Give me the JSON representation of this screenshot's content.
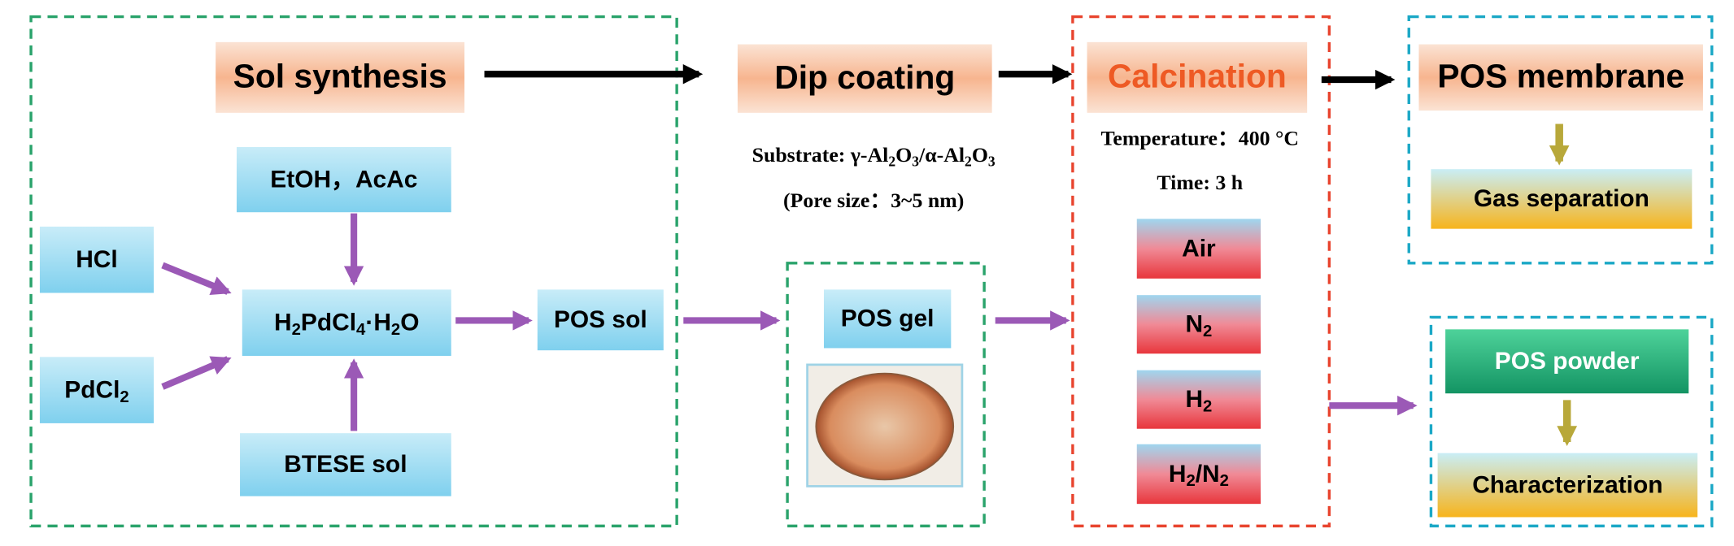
{
  "nodes": [
    {
      "label": "Sol synthesis"
    },
    {
      "label": "Dip coating"
    },
    {
      "label": "Calcination"
    },
    {
      "label": "POS membrane"
    },
    {
      "label": "Gas separation"
    },
    {
      "label": "EtOH，AcAc"
    },
    {
      "label": "HCl"
    },
    {
      "label_parts": [
        "PdCl",
        "2"
      ]
    },
    {
      "label_parts": [
        "H",
        "2",
        "PdCl",
        "4",
        "·H",
        "2",
        "O"
      ]
    },
    {
      "label": "BTESE sol"
    },
    {
      "label": "POS sol"
    },
    {
      "label": "POS gel"
    },
    {
      "label": "Air"
    },
    {
      "label_parts": [
        "N",
        "2"
      ]
    },
    {
      "label_parts": [
        "H",
        "2"
      ]
    },
    {
      "label_parts": [
        "H",
        "2",
        "/N",
        "2"
      ]
    },
    {
      "label": "POS powder"
    },
    {
      "label": "Characterization"
    }
  ],
  "annotations": [
    {
      "label_parts": [
        "Substrate: γ-Al",
        "2",
        "O",
        "3",
        "/α-Al",
        "2",
        "O",
        "3"
      ]
    },
    {
      "label": "(Pore size：3~5 nm)"
    },
    {
      "label": "Temperature：400 °C"
    },
    {
      "label": "Time: 3 h"
    }
  ]
}
